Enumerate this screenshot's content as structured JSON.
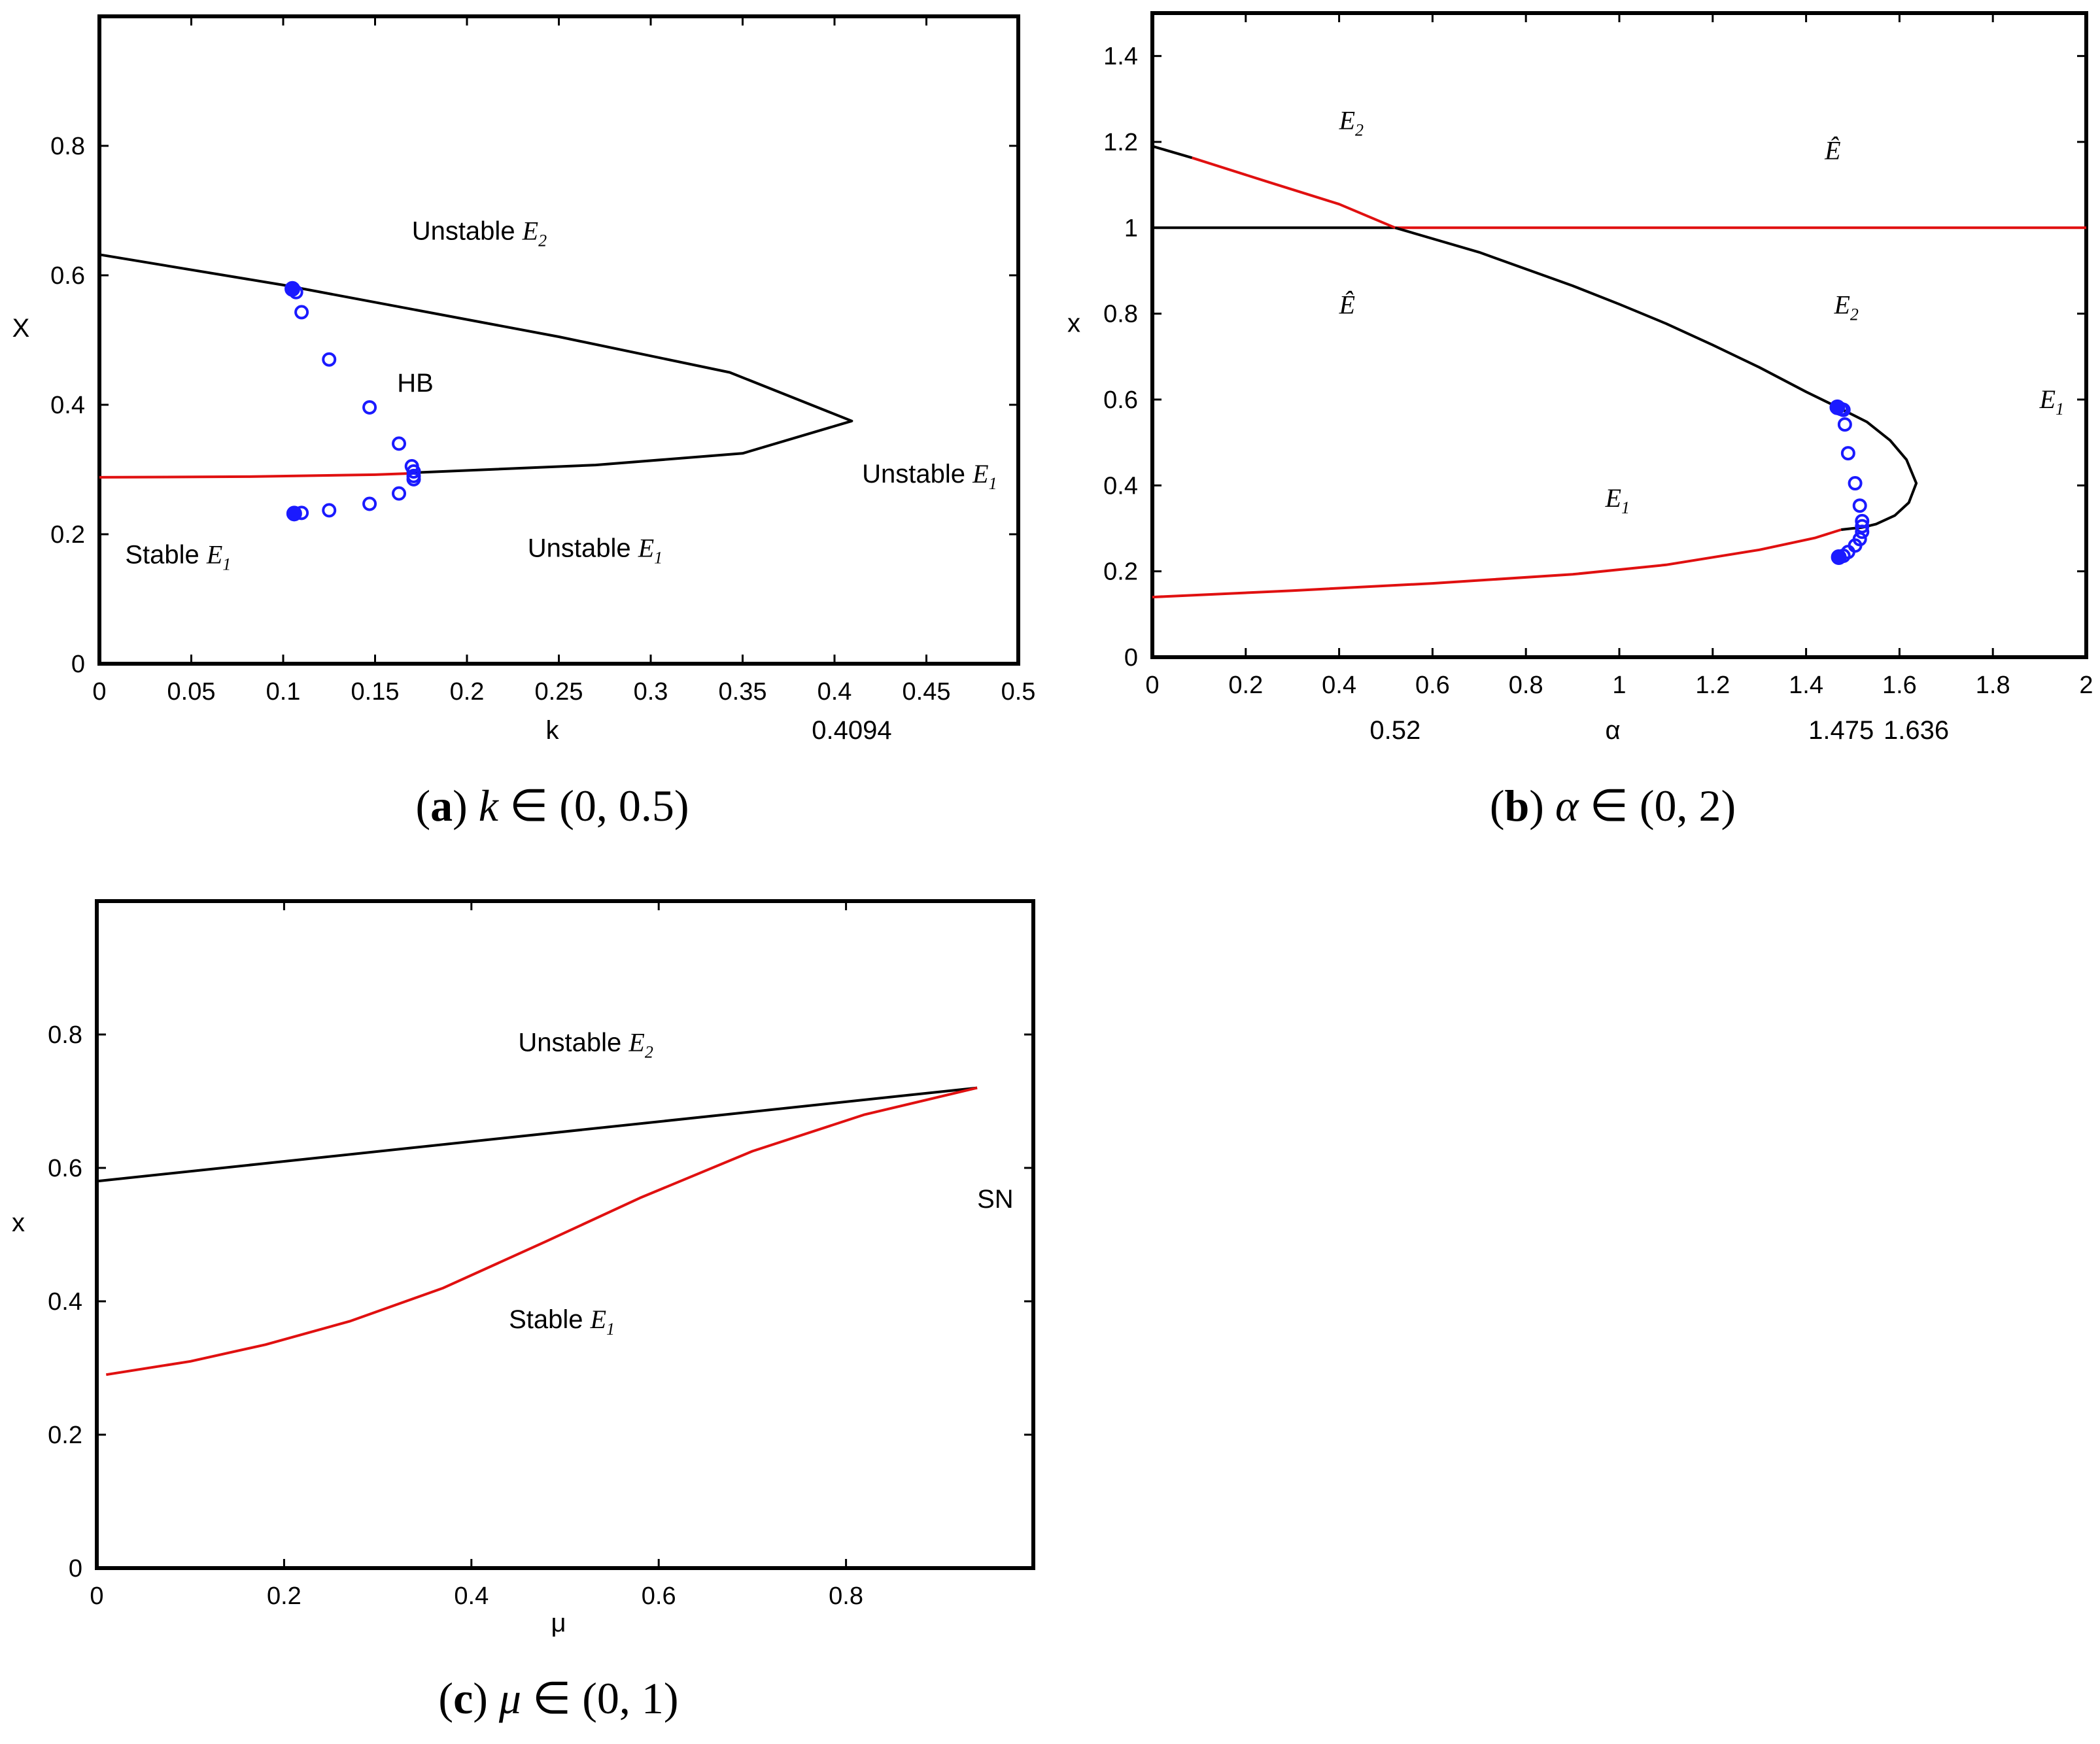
{
  "chart_data": [
    {
      "type": "line",
      "id": "a",
      "xlabel": "k",
      "ylabel": "X",
      "xlim": [
        0,
        0.5
      ],
      "ylim": [
        0,
        1.0
      ],
      "xticks": [
        "0",
        "0.05",
        "0.1",
        "0.15",
        "0.2",
        "0.25",
        "0.3",
        "0.35",
        "0.4",
        "0.45",
        "0.5"
      ],
      "xtick_values": [
        0,
        0.05,
        0.1,
        0.15,
        0.2,
        0.25,
        0.3,
        0.35,
        0.4,
        0.45,
        0.5
      ],
      "yticks": [
        "0",
        "0.2",
        "0.4",
        "0.6",
        "0.8"
      ],
      "ytick_values": [
        0,
        0.2,
        0.4,
        0.6,
        0.8
      ],
      "extra_xlabel": {
        "text": "0.4094",
        "x": 0.4094
      },
      "caption": {
        "label": "a",
        "var": "k",
        "interval": "∈ (0, 0.5)"
      },
      "series": [
        {
          "name": "black branch",
          "color": "#000000",
          "x": [
            0,
            0.1,
            0.25,
            0.343,
            0.4094,
            0.35,
            0.27,
            0.17
          ],
          "y": [
            0.632,
            0.585,
            0.505,
            0.45,
            0.375,
            0.325,
            0.307,
            0.295
          ]
        },
        {
          "name": "red branch",
          "color": "#e01010",
          "x": [
            0,
            0.08,
            0.15,
            0.17
          ],
          "y": [
            0.288,
            0.289,
            0.292,
            0.294
          ]
        }
      ],
      "markers": {
        "color": "#1a1aff",
        "x": [
          0.105,
          0.107,
          0.11,
          0.125,
          0.147,
          0.163,
          0.17,
          0.171,
          0.171,
          0.171,
          0.163,
          0.147,
          0.125,
          0.11,
          0.106
        ],
        "y": [
          0.579,
          0.574,
          0.543,
          0.47,
          0.396,
          0.34,
          0.305,
          0.297,
          0.29,
          0.285,
          0.263,
          0.247,
          0.237,
          0.233,
          0.232
        ]
      },
      "annotations": [
        {
          "text": "Unstable",
          "math": "E",
          "sub": "2",
          "x": 0.17,
          "y": 0.655
        },
        {
          "text": "HB",
          "math": "",
          "sub": "",
          "x": 0.162,
          "y": 0.42
        },
        {
          "text": "Unstable",
          "math": "E",
          "sub": "1",
          "x": 0.415,
          "y": 0.28
        },
        {
          "text": "Stable",
          "math": "E",
          "sub": "1",
          "x": 0.014,
          "y": 0.155
        },
        {
          "text": "Unstable",
          "math": "E",
          "sub": "1",
          "x": 0.233,
          "y": 0.165
        }
      ]
    },
    {
      "type": "line",
      "id": "b",
      "xlabel": "α",
      "ylabel": "x",
      "xlim": [
        0,
        2
      ],
      "ylim": [
        0,
        1.5
      ],
      "xticks": [
        "0",
        "0.2",
        "0.4",
        "0.6",
        "0.8",
        "1",
        "1.2",
        "1.4",
        "1.6",
        "1.8",
        "2"
      ],
      "xtick_values": [
        0,
        0.2,
        0.4,
        0.6,
        0.8,
        1.0,
        1.2,
        1.4,
        1.6,
        1.8,
        2.0
      ],
      "yticks": [
        "0",
        "0.2",
        "0.4",
        "0.6",
        "0.8",
        "1",
        "1.2",
        "1.4"
      ],
      "ytick_values": [
        0,
        0.2,
        0.4,
        0.6,
        0.8,
        1.0,
        1.2,
        1.4
      ],
      "extra_xlabels": [
        {
          "text": "0.52",
          "x": 0.52
        },
        {
          "text": "1.475",
          "x": 1.475
        },
        {
          "text": "1.636",
          "x": 1.636
        }
      ],
      "caption": {
        "label": "b",
        "var": "α",
        "interval": "∈ (0, 2)"
      },
      "series": [
        {
          "name": "black horizontal x=1",
          "color": "#000000",
          "x": [
            0,
            0.52
          ],
          "y": [
            1.0,
            1.0
          ]
        },
        {
          "name": "red horizontal x=1",
          "color": "#e01010",
          "x": [
            0.52,
            2.0
          ],
          "y": [
            1.0,
            1.0
          ]
        },
        {
          "name": "black start segment",
          "color": "#000000",
          "x": [
            0,
            0.085
          ],
          "y": [
            1.19,
            1.163
          ]
        },
        {
          "name": "red segment",
          "color": "#e01010",
          "x": [
            0.085,
            0.25,
            0.4,
            0.52
          ],
          "y": [
            1.163,
            1.106,
            1.055,
            1.0
          ]
        },
        {
          "name": "black upper branch",
          "color": "#000000",
          "x": [
            0.52,
            0.7,
            0.9,
            1.0,
            1.1,
            1.2,
            1.3,
            1.4,
            1.475,
            1.53,
            1.58,
            1.615,
            1.636,
            1.62,
            1.59,
            1.55,
            1.52,
            1.5,
            1.475
          ],
          "y": [
            1.0,
            0.943,
            0.865,
            0.822,
            0.777,
            0.727,
            0.675,
            0.618,
            0.578,
            0.548,
            0.505,
            0.46,
            0.405,
            0.36,
            0.33,
            0.31,
            0.302,
            0.3,
            0.297
          ]
        },
        {
          "name": "red lower branch",
          "color": "#e01010",
          "x": [
            0,
            0.3,
            0.6,
            0.9,
            1.1,
            1.3,
            1.42,
            1.475
          ],
          "y": [
            0.14,
            0.155,
            0.172,
            0.193,
            0.215,
            0.25,
            0.278,
            0.297
          ]
        }
      ],
      "markers": {
        "color": "#1a1aff",
        "x": [
          1.467,
          1.475,
          1.48,
          1.483,
          1.49,
          1.505,
          1.515,
          1.52,
          1.52,
          1.52,
          1.515,
          1.505,
          1.49,
          1.48,
          1.47
        ],
        "y": [
          0.582,
          0.578,
          0.576,
          0.542,
          0.475,
          0.405,
          0.353,
          0.317,
          0.305,
          0.292,
          0.275,
          0.26,
          0.245,
          0.236,
          0.233
        ]
      },
      "annotations": [
        {
          "text": "",
          "math": "E",
          "sub": "2",
          "hat": false,
          "x": 0.4,
          "y": 1.23
        },
        {
          "text": "",
          "math": "E",
          "sub": "",
          "hat": true,
          "x": 1.44,
          "y": 1.16
        },
        {
          "text": "",
          "math": "E",
          "sub": "",
          "hat": true,
          "x": 0.4,
          "y": 0.8
        },
        {
          "text": "",
          "math": "E",
          "sub": "2",
          "hat": false,
          "x": 1.46,
          "y": 0.8
        },
        {
          "text": "",
          "math": "E",
          "sub": "1",
          "hat": false,
          "x": 1.9,
          "y": 0.58
        },
        {
          "text": "",
          "math": "E",
          "sub": "1",
          "hat": false,
          "x": 0.97,
          "y": 0.35
        }
      ]
    },
    {
      "type": "line",
      "id": "c",
      "xlabel": "μ",
      "ylabel": "x",
      "xlim": [
        0,
        1
      ],
      "ylim": [
        0,
        1.0
      ],
      "xticks": [
        "0",
        "0.2",
        "0.4",
        "0.6",
        "0.8"
      ],
      "xtick_values": [
        0,
        0.2,
        0.4,
        0.6,
        0.8
      ],
      "yticks": [
        "0",
        "0.2",
        "0.4",
        "0.6",
        "0.8"
      ],
      "ytick_values": [
        0,
        0.2,
        0.4,
        0.6,
        0.8
      ],
      "caption": {
        "label": "c",
        "var": "μ",
        "interval": "∈ (0, 1)"
      },
      "series": [
        {
          "name": "black branch",
          "color": "#000000",
          "x": [
            0,
            0.94
          ],
          "y": [
            0.58,
            0.72
          ]
        },
        {
          "name": "red branch",
          "color": "#e01010",
          "x": [
            0.01,
            0.1,
            0.18,
            0.27,
            0.37,
            0.48,
            0.58,
            0.7,
            0.82,
            0.94
          ],
          "y": [
            0.29,
            0.31,
            0.335,
            0.37,
            0.42,
            0.49,
            0.555,
            0.625,
            0.68,
            0.72
          ]
        }
      ],
      "markers": null,
      "annotations": [
        {
          "text": "Unstable",
          "math": "E",
          "sub": "2",
          "x": 0.45,
          "y": 0.775
        },
        {
          "text": "SN",
          "math": "",
          "sub": "",
          "x": 0.94,
          "y": 0.54
        },
        {
          "text": "Stable",
          "math": "E",
          "sub": "1",
          "x": 0.44,
          "y": 0.36
        }
      ]
    }
  ]
}
